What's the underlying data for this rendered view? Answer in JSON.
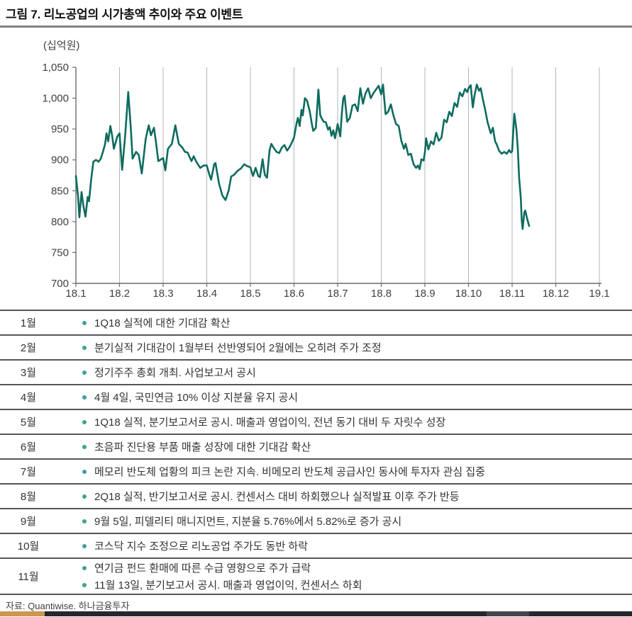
{
  "title": "그림 7. 리노공업의 시가총액 추이와 주요 이벤트",
  "source": "자료: Quantiwise. 하나금융투자",
  "colors": {
    "line": "#0D6B5E",
    "bullet": "#3FA292",
    "grid": "#b3b5b8",
    "axis": "#6a6c6f",
    "axis_text": "#414042",
    "rule": "#54565a",
    "footer_accent": "#cd9750",
    "footer_bar": "#24272e"
  },
  "chart_data": {
    "type": "line",
    "title": "리노공업 시가총액 추이 (2018.1 ~ 2018.11)",
    "unit_label": "(십억원)",
    "ylabel": "시가총액(십억원)",
    "xlabel": "",
    "ylim": [
      700,
      1050
    ],
    "y_ticks": [
      700,
      750,
      800,
      850,
      900,
      950,
      1000,
      1050
    ],
    "y_tick_labels": [
      "700",
      "750",
      "800",
      "850",
      "900",
      "950",
      "1,000",
      "1,050"
    ],
    "x_tick_labels": [
      "18.1",
      "18.2",
      "18.3",
      "18.4",
      "18.5",
      "18.6",
      "18.7",
      "18.8",
      "18.9",
      "18.10",
      "18.11",
      "18.12",
      "19.1"
    ],
    "grid": "vertical-only",
    "legend": "none",
    "series": [
      {
        "name": "시가총액",
        "points": [
          [
            0.0,
            874
          ],
          [
            0.05,
            840
          ],
          [
            0.08,
            807
          ],
          [
            0.13,
            848
          ],
          [
            0.17,
            826
          ],
          [
            0.22,
            808
          ],
          [
            0.27,
            840
          ],
          [
            0.3,
            833
          ],
          [
            0.35,
            868
          ],
          [
            0.4,
            897
          ],
          [
            0.46,
            900
          ],
          [
            0.52,
            897
          ],
          [
            0.57,
            902
          ],
          [
            0.62,
            913
          ],
          [
            0.67,
            926
          ],
          [
            0.7,
            943
          ],
          [
            0.74,
            930
          ],
          [
            0.79,
            955
          ],
          [
            0.83,
            940
          ],
          [
            0.87,
            918
          ],
          [
            0.91,
            928
          ],
          [
            0.95,
            938
          ],
          [
            1.0,
            943
          ],
          [
            1.06,
            884
          ],
          [
            1.13,
            940
          ],
          [
            1.2,
            1010
          ],
          [
            1.26,
            950
          ],
          [
            1.3,
            902
          ],
          [
            1.38,
            913
          ],
          [
            1.44,
            908
          ],
          [
            1.51,
            878
          ],
          [
            1.6,
            934
          ],
          [
            1.67,
            956
          ],
          [
            1.72,
            940
          ],
          [
            1.79,
            952
          ],
          [
            1.84,
            926
          ],
          [
            1.89,
            898
          ],
          [
            2.0,
            903
          ],
          [
            2.05,
            883
          ],
          [
            2.11,
            918
          ],
          [
            2.2,
            926
          ],
          [
            2.28,
            956
          ],
          [
            2.36,
            926
          ],
          [
            2.44,
            920
          ],
          [
            2.5,
            913
          ],
          [
            2.56,
            912
          ],
          [
            2.65,
            898
          ],
          [
            2.7,
            906
          ],
          [
            2.76,
            897
          ],
          [
            2.85,
            887
          ],
          [
            2.93,
            891
          ],
          [
            3.0,
            891
          ],
          [
            3.06,
            876
          ],
          [
            3.1,
            868
          ],
          [
            3.17,
            893
          ],
          [
            3.2,
            895
          ],
          [
            3.28,
            862
          ],
          [
            3.36,
            842
          ],
          [
            3.43,
            835
          ],
          [
            3.5,
            850
          ],
          [
            3.56,
            873
          ],
          [
            3.63,
            876
          ],
          [
            3.7,
            882
          ],
          [
            3.78,
            886
          ],
          [
            3.86,
            893
          ],
          [
            3.92,
            890
          ],
          [
            4.0,
            888
          ],
          [
            4.06,
            874
          ],
          [
            4.12,
            887
          ],
          [
            4.18,
            874
          ],
          [
            4.22,
            872
          ],
          [
            4.28,
            901
          ],
          [
            4.33,
            876
          ],
          [
            4.38,
            871
          ],
          [
            4.44,
            916
          ],
          [
            4.48,
            926
          ],
          [
            4.54,
            919
          ],
          [
            4.6,
            913
          ],
          [
            4.66,
            911
          ],
          [
            4.72,
            920
          ],
          [
            4.78,
            924
          ],
          [
            4.84,
            915
          ],
          [
            4.9,
            921
          ],
          [
            4.95,
            928
          ],
          [
            5.0,
            936
          ],
          [
            5.06,
            960
          ],
          [
            5.09,
            968
          ],
          [
            5.13,
            955
          ],
          [
            5.17,
            981
          ],
          [
            5.2,
            972
          ],
          [
            5.25,
            1000
          ],
          [
            5.3,
            996
          ],
          [
            5.36,
            979
          ],
          [
            5.41,
            958
          ],
          [
            5.44,
            947
          ],
          [
            5.5,
            952
          ],
          [
            5.56,
            1014
          ],
          [
            5.6,
            973
          ],
          [
            5.63,
            968
          ],
          [
            5.68,
            962
          ],
          [
            5.73,
            961
          ],
          [
            5.78,
            949
          ],
          [
            5.82,
            953
          ],
          [
            5.86,
            939
          ],
          [
            5.9,
            948
          ],
          [
            5.94,
            935
          ],
          [
            5.98,
            950
          ],
          [
            6.0,
            958
          ],
          [
            6.03,
            949
          ],
          [
            6.06,
            938
          ],
          [
            6.1,
            978
          ],
          [
            6.13,
            1000
          ],
          [
            6.16,
            1004
          ],
          [
            6.22,
            962
          ],
          [
            6.28,
            968
          ],
          [
            6.34,
            988
          ],
          [
            6.4,
            990
          ],
          [
            6.46,
            979
          ],
          [
            6.52,
            1016
          ],
          [
            6.58,
            991
          ],
          [
            6.64,
            1008
          ],
          [
            6.7,
            1016
          ],
          [
            6.76,
            1000
          ],
          [
            6.82,
            1008
          ],
          [
            6.88,
            1014
          ],
          [
            6.94,
            1020
          ],
          [
            7.0,
            1006
          ],
          [
            7.04,
            1022
          ],
          [
            7.1,
            974
          ],
          [
            7.16,
            978
          ],
          [
            7.22,
            990
          ],
          [
            7.28,
            972
          ],
          [
            7.34,
            958
          ],
          [
            7.4,
            955
          ],
          [
            7.46,
            931
          ],
          [
            7.52,
            918
          ],
          [
            7.56,
            926
          ],
          [
            7.62,
            908
          ],
          [
            7.68,
            910
          ],
          [
            7.74,
            893
          ],
          [
            7.8,
            887
          ],
          [
            7.84,
            891
          ],
          [
            7.88,
            885
          ],
          [
            7.92,
            901
          ],
          [
            7.97,
            899
          ],
          [
            8.0,
            912
          ],
          [
            8.03,
            935
          ],
          [
            8.08,
            917
          ],
          [
            8.14,
            930
          ],
          [
            8.2,
            925
          ],
          [
            8.26,
            944
          ],
          [
            8.32,
            931
          ],
          [
            8.38,
            936
          ],
          [
            8.44,
            965
          ],
          [
            8.5,
            961
          ],
          [
            8.56,
            978
          ],
          [
            8.62,
            971
          ],
          [
            8.68,
            992
          ],
          [
            8.74,
            986
          ],
          [
            8.8,
            1009
          ],
          [
            8.86,
            1003
          ],
          [
            8.92,
            1015
          ],
          [
            8.97,
            1010
          ],
          [
            9.0,
            1016
          ],
          [
            9.05,
            1021
          ],
          [
            9.1,
            985
          ],
          [
            9.14,
            1005
          ],
          [
            9.19,
            1022
          ],
          [
            9.24,
            1012
          ],
          [
            9.28,
            1016
          ],
          [
            9.33,
            998
          ],
          [
            9.37,
            985
          ],
          [
            9.44,
            960
          ],
          [
            9.51,
            943
          ],
          [
            9.56,
            952
          ],
          [
            9.61,
            930
          ],
          [
            9.64,
            926
          ],
          [
            9.7,
            915
          ],
          [
            9.76,
            910
          ],
          [
            9.82,
            913
          ],
          [
            9.88,
            910
          ],
          [
            9.93,
            916
          ],
          [
            9.97,
            912
          ],
          [
            10.0,
            914
          ],
          [
            10.05,
            975
          ],
          [
            10.1,
            949
          ],
          [
            10.13,
            918
          ],
          [
            10.16,
            872
          ],
          [
            10.2,
            837
          ],
          [
            10.22,
            803
          ],
          [
            10.24,
            788
          ],
          [
            10.28,
            815
          ],
          [
            10.3,
            818
          ],
          [
            10.34,
            806
          ],
          [
            10.39,
            793
          ]
        ]
      }
    ]
  },
  "events": {
    "rows": [
      {
        "month": "1월",
        "items": [
          "1Q18 실적에 대한 기대감 확산"
        ]
      },
      {
        "month": "2월",
        "items": [
          "분기실적 기대감이 1월부터 선반영되어 2월에는 오히려 주가 조정"
        ]
      },
      {
        "month": "3월",
        "items": [
          "정기주주 총회 개최. 사업보고서 공시"
        ]
      },
      {
        "month": "4월",
        "items": [
          "4월 4일, 국민연금 10% 이상 지분율 유지 공시"
        ]
      },
      {
        "month": "5월",
        "items": [
          "1Q18 실적, 분기보고서로 공시. 매출과 영업이익, 전년 동기 대비 두 자릿수 성장"
        ]
      },
      {
        "month": "6월",
        "items": [
          "초음파 진단용 부품 매출 성장에 대한 기대감 확산"
        ]
      },
      {
        "month": "7월",
        "items": [
          "메모리 반도체 업황의 피크 논란 지속. 비메모리 반도체 공급사인 동사에 투자자 관심 집중"
        ]
      },
      {
        "month": "8월",
        "items": [
          "2Q18 실적, 반기보고서로 공시. 컨센서스 대비 하회했으나 실적발표 이후 주가 반등"
        ]
      },
      {
        "month": "9월",
        "items": [
          "9월 5일, 피델리티 매니지먼트, 지분율 5.76%에서 5.82%로 증가 공시"
        ]
      },
      {
        "month": "10월",
        "items": [
          "코스닥 지수 조정으로 리노공업 주가도 동반 하락"
        ]
      },
      {
        "month": "11월",
        "items": [
          "연기금 펀드 환매에 따른 수급 영향으로 주가 급락",
          "11월 13일, 분기보고서 공시. 매출과 영업이익, 컨센서스 하회"
        ]
      }
    ]
  }
}
